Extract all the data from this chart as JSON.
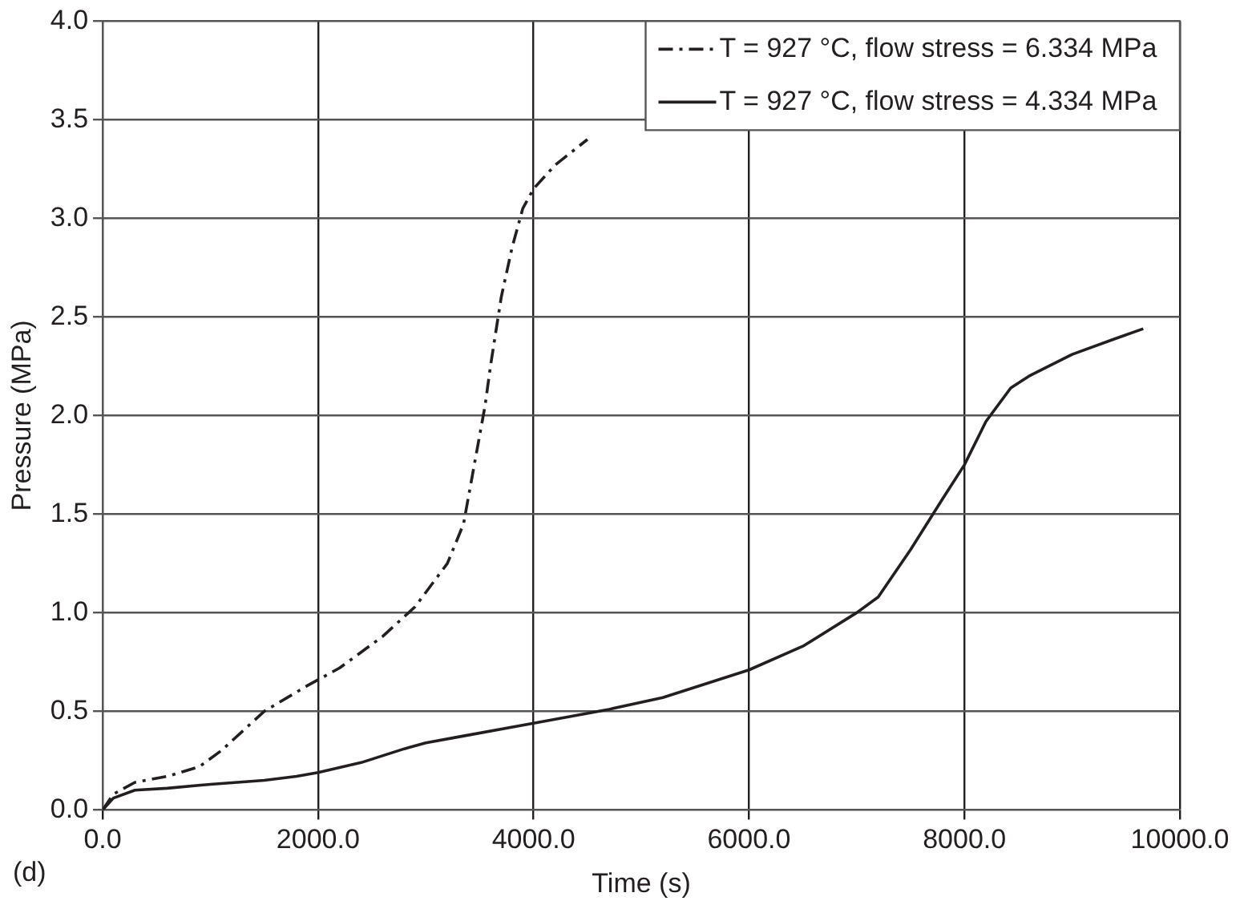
{
  "chart_data": {
    "type": "line",
    "xlabel": "Time (s)",
    "ylabel": "Pressure (MPa)",
    "annotations": [
      "(d)"
    ],
    "xlim": [
      0,
      10000
    ],
    "xticks": [
      {
        "value": 0,
        "label": "0.0"
      },
      {
        "value": 2000,
        "label": "2000.0"
      },
      {
        "value": 4000,
        "label": "4000.0"
      },
      {
        "value": 6000,
        "label": "6000.0"
      },
      {
        "value": 8000,
        "label": "8000.0"
      },
      {
        "value": 10000,
        "label": "10000.0"
      }
    ],
    "ylim": [
      0,
      4
    ],
    "yticks": [
      {
        "value": 0,
        "label": "0.0"
      },
      {
        "value": 0.5,
        "label": "0.5"
      },
      {
        "value": 1,
        "label": "1.0"
      },
      {
        "value": 1.5,
        "label": "1.5"
      },
      {
        "value": 2,
        "label": "2.0"
      },
      {
        "value": 2.5,
        "label": "2.5"
      },
      {
        "value": 3,
        "label": "3.0"
      },
      {
        "value": 3.5,
        "label": "3.5"
      },
      {
        "value": 4,
        "label": "4.0"
      }
    ],
    "grid": true,
    "legend": "top right",
    "marker": "none",
    "series": [
      {
        "name": "T = 927 °C, flow stress = 6.334 MPa",
        "color": "#231f20",
        "line_style": "dashed",
        "x": [
          0,
          100,
          300,
          600,
          900,
          1100,
          1500,
          1900,
          2200,
          2600,
          2900,
          3200,
          3350,
          3450,
          3550,
          3600,
          3700,
          3800,
          3900,
          4000,
          4200,
          4500
        ],
        "values": [
          0,
          0.08,
          0.14,
          0.17,
          0.22,
          0.3,
          0.5,
          0.63,
          0.72,
          0.88,
          1.03,
          1.25,
          1.45,
          1.75,
          2.05,
          2.25,
          2.6,
          2.85,
          3.05,
          3.15,
          3.27,
          3.4
        ]
      },
      {
        "name": "T = 927 °C, flow stress = 4.334 MPa",
        "color": "#231f20",
        "line_style": "solid",
        "x": [
          0,
          100,
          300,
          600,
          1000,
          1500,
          1800,
          2000,
          2400,
          2800,
          3000,
          3300,
          4000,
          4700,
          5200,
          6000,
          6500,
          7000,
          7200,
          7500,
          7800,
          8000,
          8200,
          8430,
          8600,
          9000,
          9400,
          9660
        ],
        "values": [
          0,
          0.06,
          0.1,
          0.11,
          0.13,
          0.15,
          0.17,
          0.19,
          0.24,
          0.31,
          0.34,
          0.37,
          0.44,
          0.51,
          0.57,
          0.71,
          0.83,
          1.0,
          1.08,
          1.32,
          1.58,
          1.75,
          1.97,
          2.14,
          2.2,
          2.31,
          2.39,
          2.44
        ]
      }
    ]
  }
}
